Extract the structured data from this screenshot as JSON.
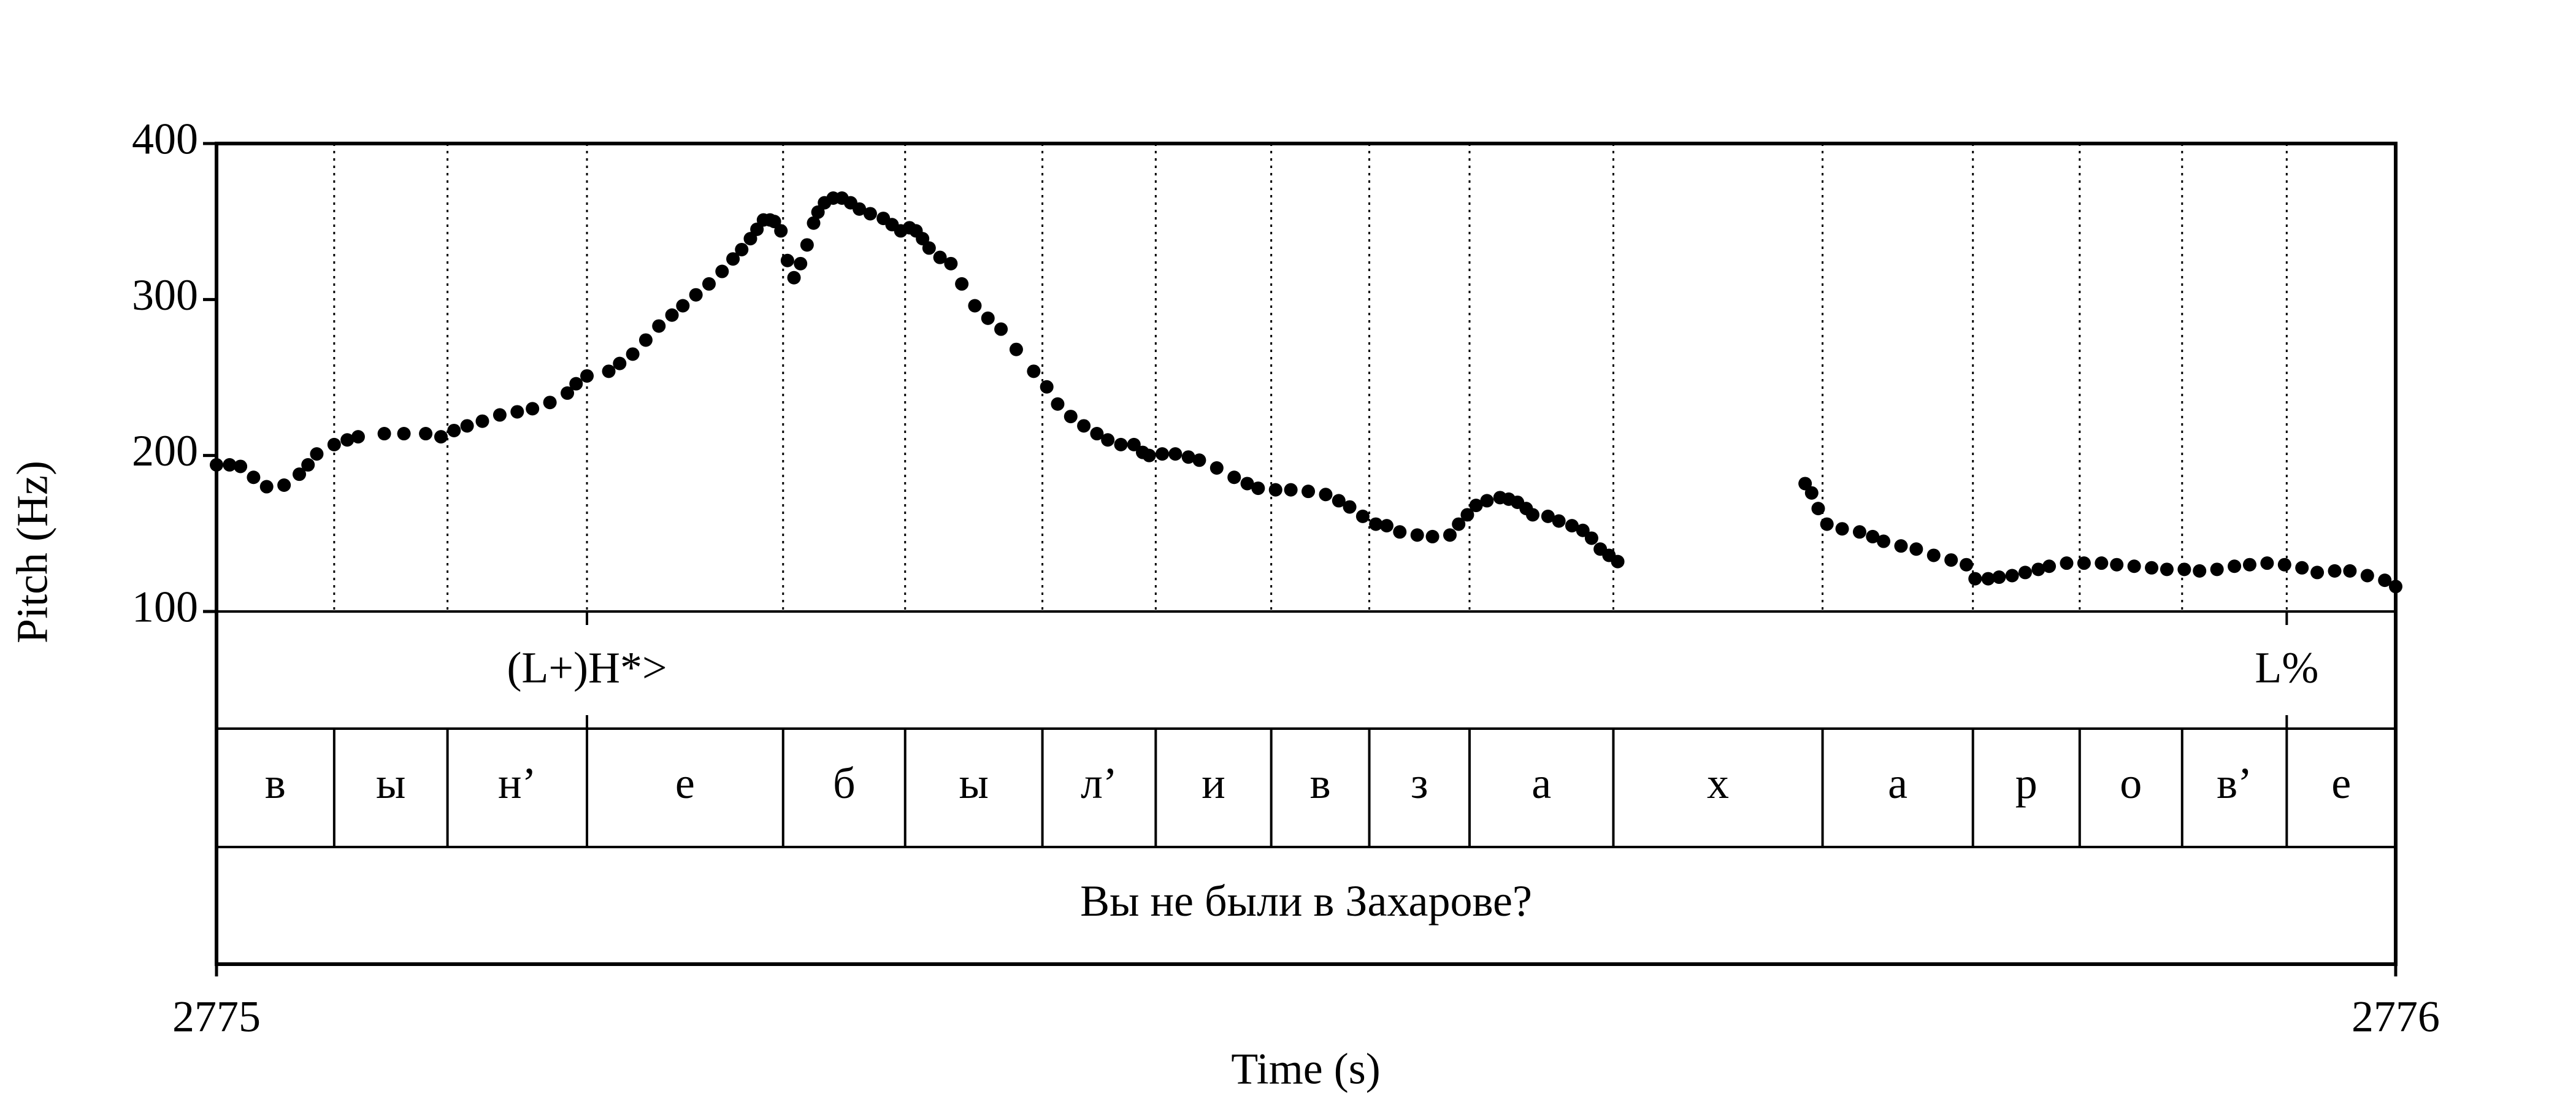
{
  "chart_data": {
    "type": "scatter",
    "y_label": "Pitch (Hz)",
    "x_label": "Time (s)",
    "xlim": [
      2775,
      2776
    ],
    "xticks": [
      2775,
      2776
    ],
    "ylim": [
      100,
      400
    ],
    "yticks": [
      100,
      200,
      300,
      400
    ],
    "color": "#000000",
    "x": [
      2775,
      2775.006,
      2775.011,
      2775.017,
      2775.023,
      2775.031,
      2775.038,
      2775.042,
      2775.046,
      2775.054,
      2775.06,
      2775.065,
      2775.077,
      2775.086,
      2775.096,
      2775.103,
      2775.109,
      2775.115,
      2775.122,
      2775.13,
      2775.138,
      2775.145,
      2775.153,
      2775.161,
      2775.165,
      2775.17,
      2775.18,
      2775.185,
      2775.191,
      2775.197,
      2775.203,
      2775.209,
      2775.214,
      2775.22,
      2775.226,
      2775.232,
      2775.237,
      2775.241,
      2775.245,
      2775.248,
      2775.251,
      2775.254,
      2775.256,
      2775.259,
      2775.262,
      2775.265,
      2775.268,
      2775.271,
      2775.274,
      2775.276,
      2775.279,
      2775.283,
      2775.287,
      2775.291,
      2775.295,
      2775.3,
      2775.306,
      2775.31,
      2775.314,
      2775.318,
      2775.321,
      2775.324,
      2775.327,
      2775.332,
      2775.337,
      2775.342,
      2775.348,
      2775.354,
      2775.36,
      2775.367,
      2775.375,
      2775.381,
      2775.386,
      2775.392,
      2775.398,
      2775.404,
      2775.409,
      2775.415,
      2775.421,
      2775.425,
      2775.428,
      2775.434,
      2775.44,
      2775.446,
      2775.451,
      2775.459,
      2775.467,
      2775.473,
      2775.478,
      2775.486,
      2775.493,
      2775.501,
      2775.509,
      2775.515,
      2775.52,
      2775.526,
      2775.532,
      2775.537,
      2775.543,
      2775.551,
      2775.558,
      2775.566,
      2775.57,
      2775.574,
      2775.578,
      2775.583,
      2775.589,
      2775.593,
      2775.597,
      2775.601,
      2775.604,
      2775.611,
      2775.616,
      2775.622,
      2775.627,
      2775.631,
      2775.635,
      2775.639,
      2775.643,
      2775.729,
      2775.732,
      2775.735,
      2775.739,
      2775.746,
      2775.754,
      2775.76,
      2775.765,
      2775.773,
      2775.78,
      2775.788,
      2775.796,
      2775.803,
      2775.807,
      2775.813,
      2775.818,
      2775.824,
      2775.83,
      2775.836,
      2775.841,
      2775.849,
      2775.857,
      2775.865,
      2775.872,
      2775.88,
      2775.888,
      2775.895,
      2775.903,
      2775.91,
      2775.918,
      2775.926,
      2775.933,
      2775.941,
      2775.949,
      2775.957,
      2775.964,
      2775.972,
      2775.979,
      2775.987,
      2775.995,
      2776
    ],
    "values": [
      194,
      194,
      193,
      186,
      180,
      181,
      188,
      194,
      201,
      207,
      210,
      212,
      214,
      214,
      214,
      212,
      216,
      219,
      222,
      226,
      228,
      230,
      234,
      240,
      246,
      251,
      254,
      259,
      265,
      274,
      283,
      290,
      296,
      303,
      310,
      318,
      326,
      332,
      339,
      345,
      351,
      351,
      350,
      344,
      325,
      314,
      323,
      335,
      349,
      356,
      362,
      365,
      365,
      362,
      358,
      355,
      352,
      348,
      344,
      346,
      344,
      339,
      333,
      327,
      323,
      310,
      296,
      288,
      281,
      268,
      254,
      244,
      233,
      225,
      219,
      214,
      210,
      207,
      207,
      202,
      200,
      201,
      201,
      199,
      197,
      192,
      186,
      182,
      179,
      178,
      178,
      177,
      175,
      171,
      167,
      161,
      156,
      155,
      151,
      149,
      148,
      149,
      156,
      162,
      168,
      171,
      173,
      172,
      170,
      166,
      162,
      161,
      158,
      155,
      152,
      147,
      140,
      136,
      132,
      182,
      176,
      166,
      156,
      153,
      151,
      148,
      145,
      142,
      140,
      136,
      133,
      130,
      121,
      121,
      122,
      123,
      125,
      127,
      129,
      131,
      131,
      131,
      130,
      129,
      128,
      127,
      127,
      126,
      127,
      129,
      130,
      131,
      130,
      128,
      125,
      126,
      126,
      123,
      120,
      116
    ],
    "tone_tier": {
      "points": [
        {
          "time": 2775.17,
          "text": "(L+)H*>"
        },
        {
          "time": 2775.95,
          "text": "L%"
        }
      ]
    },
    "segment_tier": {
      "boundaries": [
        2775,
        2775.054,
        2775.106,
        2775.17,
        2775.26,
        2775.316,
        2775.379,
        2775.431,
        2775.484,
        2775.529,
        2775.575,
        2775.641,
        2775.737,
        2775.806,
        2775.855,
        2775.902,
        2775.95,
        2776
      ],
      "labels": [
        "в",
        "ы",
        "н’",
        "е",
        "б",
        "ы",
        "л’",
        "и",
        "в",
        "з",
        "а",
        "х",
        "а",
        "р",
        "о",
        "в’",
        "е"
      ]
    },
    "sentence_tier": {
      "boundaries": [
        2775,
        2776
      ],
      "labels": [
        "Вы не были в Захарове?"
      ]
    }
  }
}
